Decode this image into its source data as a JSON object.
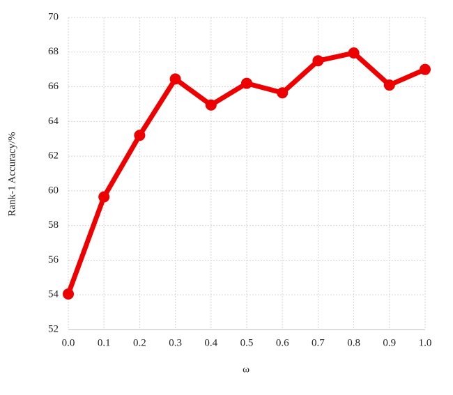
{
  "chart_data": {
    "type": "line",
    "x_label": "ω",
    "y_label": "Rank-1 Accuracy/%",
    "x": [
      0,
      0.1,
      0.2,
      0.3,
      0.4,
      0.5,
      0.6,
      0.7,
      0.8,
      0.9,
      1
    ],
    "series": [
      {
        "name": "Rank-1 Accuracy",
        "color": "#ee0000",
        "values": [
          54.05,
          59.65,
          63.2,
          66.45,
          64.95,
          66.2,
          65.65,
          67.5,
          67.95,
          66.1,
          67.0
        ]
      }
    ],
    "xlim": [
      0,
      1
    ],
    "xticks": [
      {
        "value": 0,
        "label": "0.0"
      },
      0.1,
      0.2,
      0.3,
      0.4,
      0.5,
      0.6,
      0.7,
      0.8,
      0.9,
      {
        "value": 1,
        "label": "1.0"
      }
    ],
    "ylim": [
      52,
      70
    ],
    "yticks": [
      52,
      54,
      56,
      58,
      60,
      62,
      64,
      66,
      68,
      70
    ],
    "grid": true
  }
}
